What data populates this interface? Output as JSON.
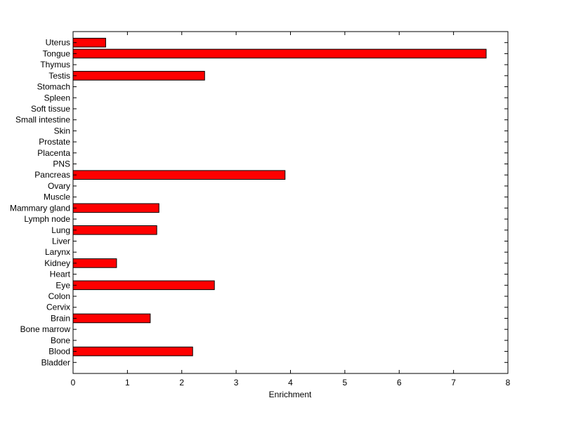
{
  "chart_data": {
    "type": "bar",
    "orientation": "horizontal",
    "title": "",
    "xlabel": "Enrichment",
    "ylabel": "",
    "xlim": [
      0,
      8
    ],
    "xticks": [
      0,
      1,
      2,
      3,
      4,
      5,
      6,
      7,
      8
    ],
    "grid": false,
    "legend": "none",
    "bar_color": "#ff0000",
    "categories_top_to_bottom": [
      "Uterus",
      "Tongue",
      "Thymus",
      "Testis",
      "Stomach",
      "Spleen",
      "Soft tissue",
      "Small intestine",
      "Skin",
      "Prostate",
      "Placenta",
      "PNS",
      "Pancreas",
      "Ovary",
      "Muscle",
      "Mammary gland",
      "Lymph node",
      "Lung",
      "Liver",
      "Larynx",
      "Kidney",
      "Heart",
      "Eye",
      "Colon",
      "Cervix",
      "Brain",
      "Bone marrow",
      "Bone",
      "Blood",
      "Bladder"
    ],
    "values": [
      0.6,
      7.6,
      0,
      2.42,
      0,
      0,
      0,
      0,
      0,
      0,
      0,
      0,
      3.9,
      0,
      0,
      1.58,
      0,
      1.54,
      0,
      0,
      0.8,
      0,
      2.6,
      0,
      0,
      1.42,
      0,
      0,
      2.2,
      0
    ]
  }
}
